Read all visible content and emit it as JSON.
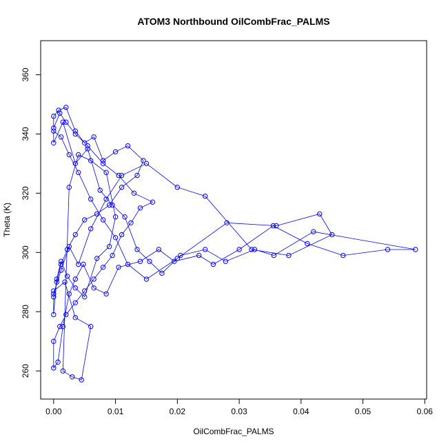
{
  "chart_data": {
    "type": "scatter",
    "title": "ATOM3 Northbound OilCombFrac_PALMS",
    "xlabel": "OilCombFrac_PALMS",
    "ylabel": "Theta (K)",
    "xlim": [
      -0.0021,
      0.0603
    ],
    "ylim": [
      250.5,
      371.5
    ],
    "xticks": [
      0.0,
      0.01,
      0.02,
      0.03,
      0.04,
      0.05,
      0.06
    ],
    "xtick_labels": [
      "0.00",
      "0.01",
      "0.02",
      "0.03",
      "0.04",
      "0.05",
      "0.06"
    ],
    "yticks": [
      260,
      280,
      300,
      320,
      340,
      360
    ],
    "ytick_labels": [
      "260",
      "280",
      "300",
      "320",
      "340",
      "360"
    ],
    "grid": false,
    "legend": "none",
    "point_style": "open-circle",
    "connected": true,
    "color": "#0000ff",
    "series": [
      {
        "x": [
          0.0,
          0.0012,
          0.0025,
          0.004,
          0.006,
          0.0085,
          0.011,
          0.015,
          0.02,
          0.0245,
          0.032,
          0.038,
          0.045,
          0.043,
          0.036,
          0.028,
          0.02,
          0.015,
          0.012,
          0.01,
          0.008,
          0.006,
          0.004,
          0.0025,
          0.0012,
          0.0,
          0.0,
          0.0015,
          0.0035,
          0.0055,
          0.0075,
          0.0095,
          0.0115,
          0.0135,
          0.0155,
          0.0175,
          0.0205,
          0.0245,
          0.0278,
          0.0325,
          0.0356,
          0.042,
          0.0585,
          0.054,
          0.0468,
          0.041,
          0.0355,
          0.03,
          0.0258,
          0.0235,
          0.0195,
          0.017,
          0.014,
          0.0105,
          0.0085,
          0.0065,
          0.0048,
          0.0035,
          0.0025,
          0.0015,
          0.0007,
          0.0,
          0.0,
          0.001,
          0.002,
          0.0035,
          0.005,
          0.0065,
          0.008,
          0.0095,
          0.011,
          0.0125,
          0.014,
          0.016,
          0.013,
          0.0105,
          0.008,
          0.0055,
          0.0035,
          0.002,
          0.001,
          0.0,
          0.0,
          0.0008,
          0.002,
          0.0035,
          0.005,
          0.0065,
          0.008,
          0.01,
          0.012,
          0.0145,
          0.0135,
          0.011,
          0.009,
          0.007,
          0.005,
          0.0035,
          0.0022,
          0.0012,
          0.0005,
          0.0,
          0.0,
          0.0005,
          0.0012,
          0.0022,
          0.0035,
          0.005,
          0.007,
          0.009,
          0.01,
          0.0085,
          0.006,
          0.004,
          0.0025,
          0.0015,
          0.003,
          0.0045,
          0.006,
          0.0035,
          0.0018,
          0.0
        ],
        "y": [
          286,
          294,
          302,
          296,
          308,
          318,
          326,
          330,
          322,
          319,
          301,
          299,
          306,
          313,
          309,
          310,
          298,
          291,
          296,
          305,
          311,
          318,
          327,
          333,
          339,
          341,
          337,
          344,
          330,
          335,
          321,
          316,
          312,
          301,
          297,
          293,
          299,
          301,
          297,
          301,
          299,
          307,
          301,
          301,
          299,
          303,
          309,
          301,
          296,
          299,
          297,
          301,
          297,
          295,
          286,
          288,
          296,
          291,
          286,
          275,
          263,
          261,
          270,
          275,
          279,
          283,
          287,
          291,
          295,
          299,
          306,
          310,
          315,
          317,
          320,
          326,
          330,
          336,
          340,
          344,
          347,
          342,
          346,
          348,
          349,
          341,
          337,
          339,
          331,
          334,
          336,
          331,
          326,
          322,
          316,
          313,
          311,
          306,
          301,
          296,
          290,
          285,
          279,
          291,
          297,
          292,
          288,
          285,
          298,
          302,
          312,
          327,
          331,
          333,
          322,
          260,
          258,
          257,
          275,
          278,
          290,
          287
        ]
      }
    ]
  }
}
